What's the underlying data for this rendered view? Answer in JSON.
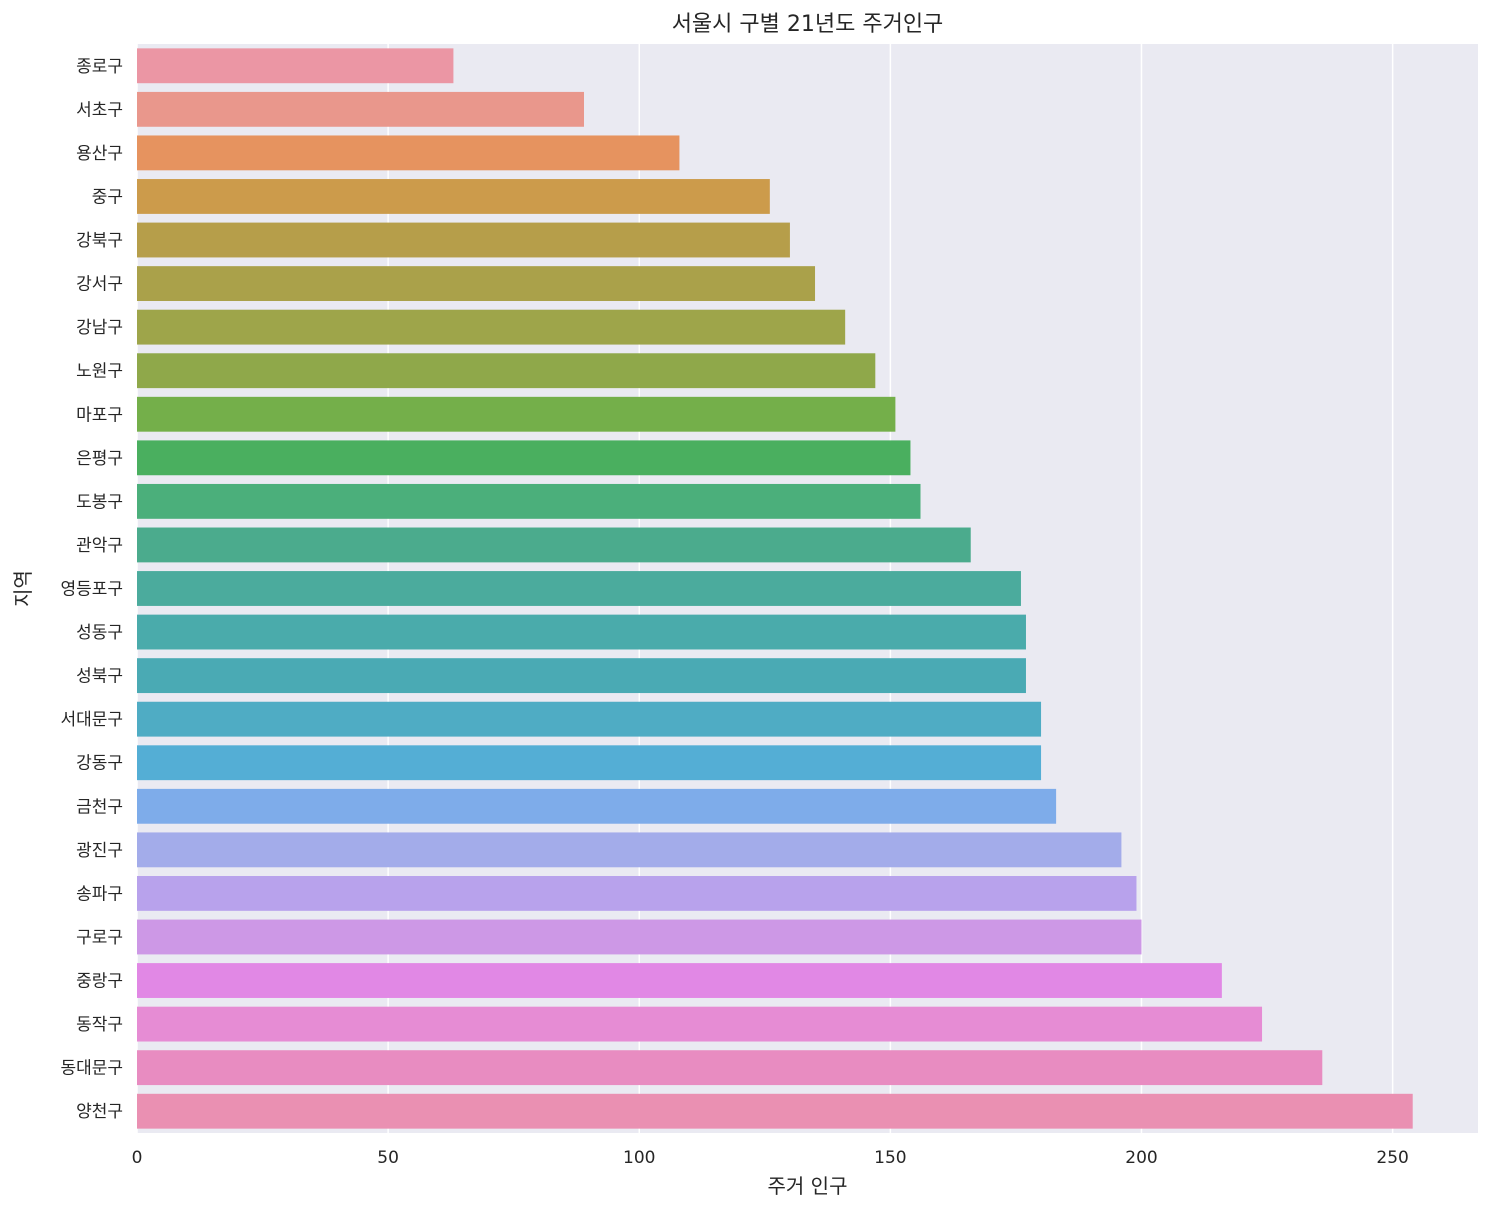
{
  "chart_data": {
    "type": "bar",
    "orientation": "horizontal",
    "title": "서울시 구별 21년도 주거인구",
    "xlabel": "주거 인구",
    "ylabel": "지역",
    "xlim": [
      0,
      267
    ],
    "xticks": [
      0,
      50,
      100,
      150,
      200,
      250
    ],
    "grid": true,
    "categories": [
      "종로구",
      "서초구",
      "용산구",
      "중구",
      "강북구",
      "강서구",
      "강남구",
      "노원구",
      "마포구",
      "은평구",
      "도봉구",
      "관악구",
      "영등포구",
      "성동구",
      "성북구",
      "서대문구",
      "강동구",
      "금천구",
      "광진구",
      "송파구",
      "구로구",
      "중랑구",
      "동작구",
      "동대문구",
      "양천구"
    ],
    "values": [
      63,
      89,
      108,
      126,
      130,
      135,
      141,
      147,
      151,
      154,
      156,
      166,
      176,
      177,
      177,
      180,
      180,
      183,
      196,
      199,
      200,
      216,
      224,
      236,
      254
    ],
    "colors": [
      "#eb96a4",
      "#e9978c",
      "#e6935f",
      "#cc9b4b",
      "#b69e4a",
      "#aaa14a",
      "#9ea54a",
      "#8fa84a",
      "#74af4a",
      "#4aaf5f",
      "#4baf7b",
      "#4bab8d",
      "#4bab9d",
      "#4aabab",
      "#4aaab4",
      "#4facc4",
      "#54aed5",
      "#7eacea",
      "#a3acea",
      "#b8a2ec",
      "#cd98e6",
      "#e188e5",
      "#e68cd4",
      "#e88cc1",
      "#ea90b2"
    ],
    "background": "#eaeaf2"
  }
}
